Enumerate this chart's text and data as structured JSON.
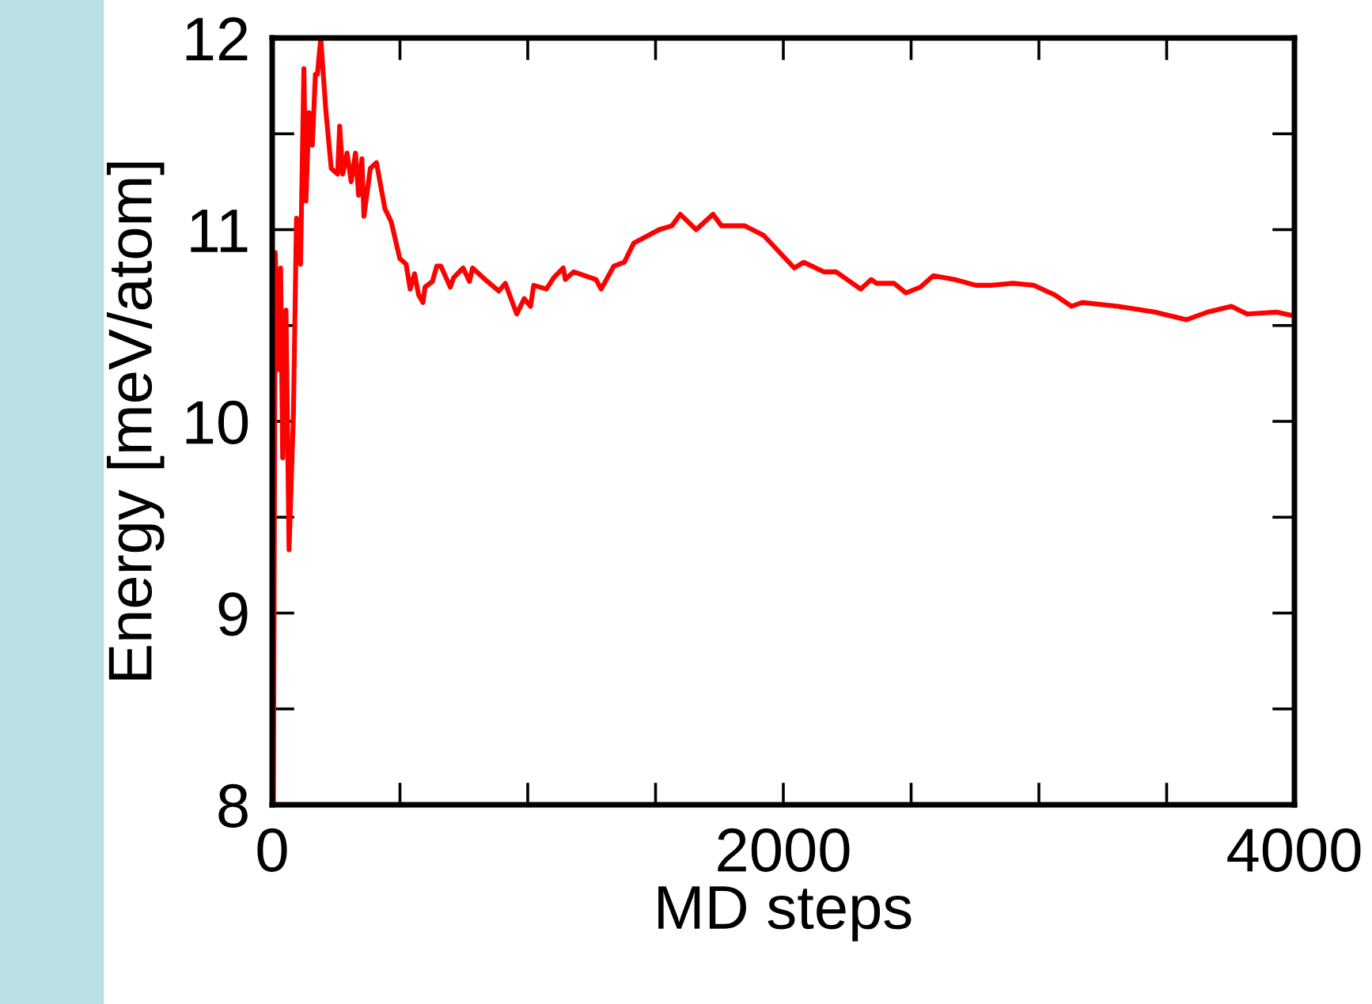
{
  "chart_data": {
    "type": "line",
    "xlabel": "MD steps",
    "ylabel": "Energy [meV/atom]",
    "xlim": [
      0,
      4000
    ],
    "ylim": [
      8,
      12
    ],
    "xticks": [
      0,
      {
        "value": 500,
        "label": null
      },
      {
        "value": 1000,
        "label": null
      },
      {
        "value": 1500,
        "label": null
      },
      2000,
      {
        "value": 2500,
        "label": null
      },
      {
        "value": 3000,
        "label": null
      },
      {
        "value": 3500,
        "label": null
      },
      4000
    ],
    "yticks": [
      8,
      {
        "value": 8.5,
        "label": null
      },
      9,
      {
        "value": 9.5,
        "label": null
      },
      10,
      {
        "value": 10.5,
        "label": null
      },
      11,
      {
        "value": 11.5,
        "label": null
      },
      12
    ],
    "grid": false,
    "legend": false,
    "marker": "none",
    "line_style": "solid",
    "series": [
      {
        "color": "#ff0000",
        "x": [
          5,
          12,
          25,
          33,
          41,
          54,
          66,
          83,
          95,
          111,
          124,
          132,
          144,
          157,
          169,
          177,
          190,
          210,
          231,
          256,
          264,
          276,
          293,
          309,
          326,
          338,
          351,
          359,
          384,
          408,
          441,
          466,
          499,
          524,
          540,
          557,
          573,
          590,
          598,
          627,
          644,
          660,
          697,
          710,
          747,
          772,
          784,
          833,
          887,
          912,
          957,
          986,
          1011,
          1023,
          1073,
          1102,
          1139,
          1147,
          1180,
          1267,
          1287,
          1337,
          1378,
          1415,
          1514,
          1564,
          1597,
          1659,
          1725,
          1758,
          1849,
          1923,
          2043,
          2080,
          2158,
          2206,
          2303,
          2344,
          2365,
          2433,
          2480,
          2536,
          2587,
          2670,
          2753,
          2815,
          2897,
          2979,
          3062,
          3128,
          3169,
          3310,
          3454,
          3578,
          3660,
          3753,
          3815,
          3929,
          4000
        ],
        "values": [
          8.0,
          10.88,
          10.27,
          10.8,
          9.81,
          10.58,
          9.33,
          10.03,
          11.06,
          10.82,
          11.84,
          11.15,
          11.61,
          11.44,
          11.81,
          11.81,
          12.0,
          11.62,
          11.32,
          11.29,
          11.54,
          11.29,
          11.4,
          11.25,
          11.4,
          11.18,
          11.37,
          11.07,
          11.32,
          11.35,
          11.11,
          11.04,
          10.85,
          10.82,
          10.69,
          10.77,
          10.66,
          10.62,
          10.7,
          10.73,
          10.81,
          10.81,
          10.7,
          10.75,
          10.8,
          10.73,
          10.8,
          10.74,
          10.68,
          10.72,
          10.56,
          10.64,
          10.6,
          10.71,
          10.69,
          10.75,
          10.8,
          10.74,
          10.78,
          10.74,
          10.69,
          10.81,
          10.83,
          10.93,
          11.0,
          11.02,
          11.08,
          11.0,
          11.08,
          11.02,
          11.02,
          10.97,
          10.8,
          10.83,
          10.78,
          10.78,
          10.69,
          10.74,
          10.72,
          10.72,
          10.67,
          10.7,
          10.76,
          10.74,
          10.71,
          10.71,
          10.72,
          10.71,
          10.66,
          10.6,
          10.62,
          10.6,
          10.57,
          10.53,
          10.57,
          10.6,
          10.56,
          10.57,
          10.55
        ]
      }
    ]
  }
}
